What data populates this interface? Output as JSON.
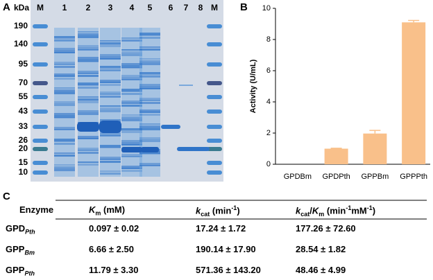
{
  "panel_labels": [
    "A",
    "B",
    "C"
  ],
  "gel": {
    "unit_label": "kDa",
    "lanes": [
      "M",
      "1",
      "2",
      "3",
      "4",
      "5",
      "6",
      "7",
      "8",
      "M"
    ],
    "markers": [
      190,
      140,
      95,
      70,
      55,
      43,
      33,
      26,
      20,
      15,
      10
    ]
  },
  "chart_data": {
    "type": "bar",
    "y_label": "Activity (U/mL)",
    "categories": [
      "GPDBm",
      "GPDPth",
      "GPPBm",
      "GPPPth"
    ],
    "values": [
      0,
      1.0,
      1.97,
      9.1
    ],
    "errors": [
      0,
      0.03,
      0.2,
      0.12
    ],
    "color": "#f9c08a",
    "ylim": [
      0,
      10
    ],
    "yticks": [
      0,
      2,
      4,
      6,
      8,
      10
    ],
    "grid": false
  },
  "table": {
    "headers": [
      [
        "Enzyme"
      ],
      [
        "K",
        "m",
        " (mM)"
      ],
      [
        "k",
        "cat",
        " (min",
        "-1",
        ")"
      ],
      [
        "k",
        "cat",
        "/",
        "K",
        "m",
        " (min",
        "-1",
        "mM",
        "-1",
        ")"
      ]
    ],
    "rows": [
      [
        [
          "GPD",
          "Pth"
        ],
        "0.097 ± 0.02",
        "17.24 ± 1.72",
        "177.26 ± 72.60"
      ],
      [
        [
          "GPP",
          "Bm"
        ],
        "6.66 ± 2.50",
        "190.14 ± 17.90",
        "28.54 ± 1.82"
      ],
      [
        [
          "GPP",
          "Pth"
        ],
        "11.79 ± 3.30",
        "571.36 ± 143.20",
        "48.46 ± 4.99"
      ]
    ]
  }
}
